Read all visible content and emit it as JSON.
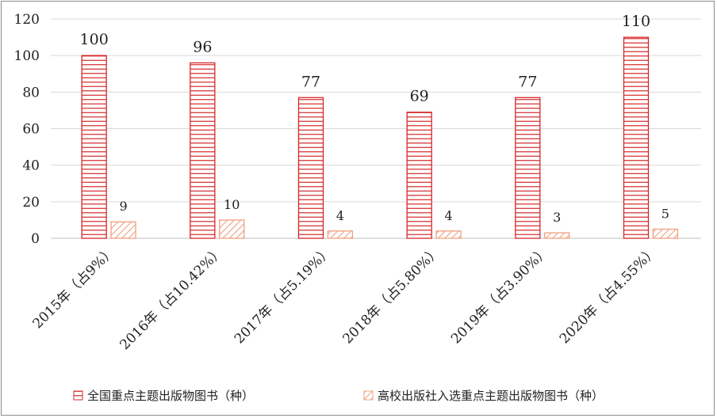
{
  "chart_data": {
    "type": "bar",
    "categories": [
      "2015年（占9%）",
      "2016年（占10.42%）",
      "2017年（占5.19%）",
      "2018年（占5.80%）",
      "2019年（占3.90%）",
      "2020年（占4.55%）"
    ],
    "series": [
      {
        "name": "全国重点主题出版物图书（种）",
        "values": [
          100,
          96,
          77,
          69,
          77,
          110
        ],
        "color": "#d62728"
      },
      {
        "name": "高校出版社入选重点主题出版物图书（种）",
        "values": [
          9,
          10,
          4,
          4,
          3,
          5
        ],
        "color": "#f0a080"
      }
    ],
    "ylim": [
      0,
      120
    ],
    "yticks": [
      0,
      20,
      40,
      60,
      80,
      100,
      120
    ],
    "grid": true,
    "legend_position": "bottom"
  }
}
